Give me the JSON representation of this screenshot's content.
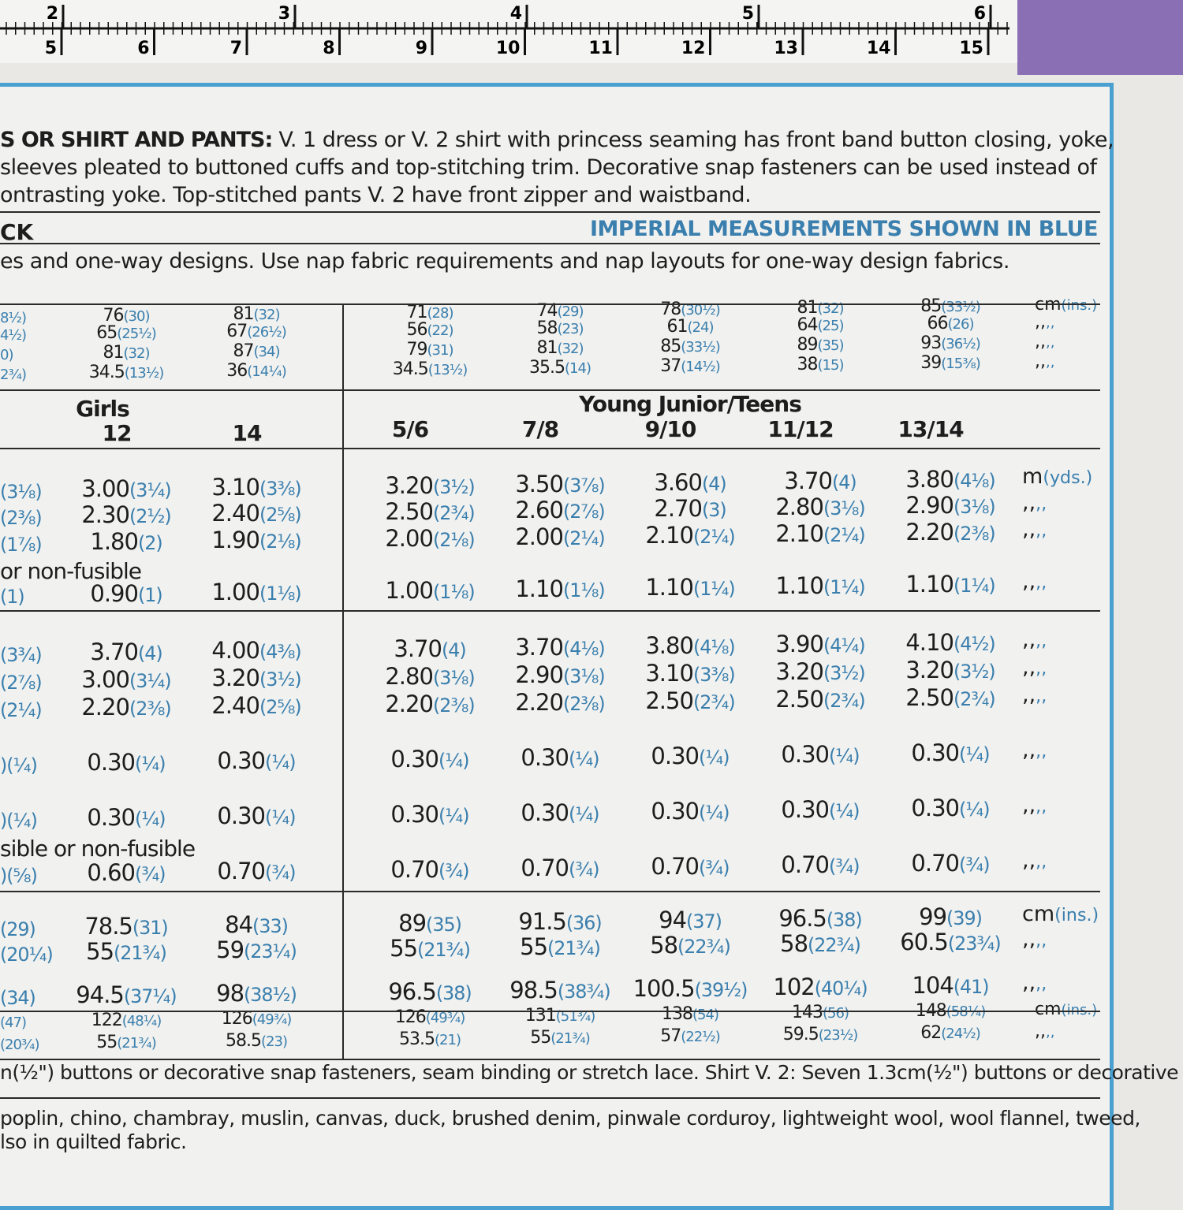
{
  "ruler": {
    "inches": [
      "2",
      "3",
      "4",
      "5",
      "6"
    ],
    "cm": [
      "5",
      "6",
      "7",
      "8",
      "9",
      "10",
      "11",
      "12",
      "13",
      "14",
      "15"
    ]
  },
  "description": {
    "heading": "S OR SHIRT AND PANTS:",
    "lines": [
      " V. 1 dress or V. 2 shirt with princess seaming has front band button closing, yoke,",
      "sleeves pleated to buttoned cuffs and top-stitching trim. Decorative snap fasteners can be used instead of",
      "ontrasting yoke. Top-stitched pants V. 2 have front zipper and waistband."
    ]
  },
  "section": {
    "label": "CK",
    "imperial_note": "IMPERIAL MEASUREMENTS SHOWN IN BLUE",
    "note": "es and one-way designs. Use nap fabric requirements and nap layouts for one-way design fabrics."
  },
  "sizes": {
    "girls": {
      "label": "Girls",
      "sizes": [
        "12",
        "14"
      ]
    },
    "young_junior_teens": {
      "label": "Young Junior/Teens",
      "sizes": [
        "5/6",
        "7/8",
        "9/10",
        "11/12",
        "13/14"
      ]
    }
  },
  "blocks": [
    {
      "rows": [
        [
          [
            "8½)"
          ],
          [
            "76",
            "(30)"
          ],
          [
            "81",
            "(32)"
          ],
          [
            "71",
            "(28)"
          ],
          [
            "74",
            "(29)"
          ],
          [
            "78",
            "(30½)"
          ],
          [
            "81",
            "(32)"
          ],
          [
            "85",
            "(33½)"
          ],
          [
            "cm",
            "(ins.)"
          ]
        ],
        [
          [
            "4½)"
          ],
          [
            "65",
            "(25½)"
          ],
          [
            "67",
            "(26½)"
          ],
          [
            "56",
            "(22)"
          ],
          [
            "58",
            "(23)"
          ],
          [
            "61",
            "(24)"
          ],
          [
            "64",
            "(25)"
          ],
          [
            "66",
            "(26)"
          ],
          [
            ",,",
            ",,"
          ]
        ],
        [
          [
            "0)"
          ],
          [
            "81",
            "(32)"
          ],
          [
            "87",
            "(34)"
          ],
          [
            "79",
            "(31)"
          ],
          [
            "81",
            "(32)"
          ],
          [
            "85",
            "(33½)"
          ],
          [
            "89",
            "(35)"
          ],
          [
            "93",
            "(36½)"
          ],
          [
            ",,",
            ",,"
          ]
        ],
        [
          [
            "2¾)"
          ],
          [
            "34.5",
            "(13½)"
          ],
          [
            "36",
            "(14¼)"
          ],
          [
            "34.5",
            "(13½)"
          ],
          [
            "35.5",
            "(14)"
          ],
          [
            "37",
            "(14½)"
          ],
          [
            "38",
            "(15)"
          ],
          [
            "39",
            "(15⅜)"
          ],
          [
            ",,",
            ",,"
          ]
        ]
      ]
    },
    {
      "rows": [
        [
          [
            "(3⅛)"
          ],
          [
            "3.00",
            "(3¼)"
          ],
          [
            "3.10",
            "(3⅜)"
          ],
          [
            "3.20",
            "(3½)"
          ],
          [
            "3.50",
            "(3⅞)"
          ],
          [
            "3.60",
            "(4)"
          ],
          [
            "3.70",
            "(4)"
          ],
          [
            "3.80",
            "(4⅛)"
          ],
          [
            "m",
            "(yds.)"
          ]
        ],
        [
          [
            "(2⅜)"
          ],
          [
            "2.30",
            "(2½)"
          ],
          [
            "2.40",
            "(2⅝)"
          ],
          [
            "2.50",
            "(2¾)"
          ],
          [
            "2.60",
            "(2⅞)"
          ],
          [
            "2.70",
            "(3)"
          ],
          [
            "2.80",
            "(3⅛)"
          ],
          [
            "2.90",
            "(3⅛)"
          ],
          [
            ",,",
            ",,"
          ]
        ],
        [
          [
            "(1⅞)"
          ],
          [
            "1.80",
            "(2)"
          ],
          [
            "1.90",
            "(2⅛)"
          ],
          [
            "2.00",
            "(2⅛)"
          ],
          [
            "2.00",
            "(2¼)"
          ],
          [
            "2.10",
            "(2¼)"
          ],
          [
            "2.10",
            "(2¼)"
          ],
          [
            "2.20",
            "(2⅜)"
          ],
          [
            ",,",
            ",,"
          ]
        ],
        [
          [
            "(1)"
          ],
          [
            "0.90",
            "(1)"
          ],
          [
            "1.00",
            "(1⅛)"
          ],
          [
            "1.00",
            "(1⅛)"
          ],
          [
            "1.10",
            "(1⅛)"
          ],
          [
            "1.10",
            "(1¼)"
          ],
          [
            "1.10",
            "(1¼)"
          ],
          [
            "1.10",
            "(1¼)"
          ],
          [
            ",,",
            ",,"
          ]
        ]
      ],
      "note": "or non-fusible"
    },
    {
      "rows": [
        [
          [
            "(3¾)"
          ],
          [
            "3.70",
            "(4)"
          ],
          [
            "4.00",
            "(4⅜)"
          ],
          [
            "3.70",
            "(4)"
          ],
          [
            "3.70",
            "(4⅛)"
          ],
          [
            "3.80",
            "(4⅛)"
          ],
          [
            "3.90",
            "(4¼)"
          ],
          [
            "4.10",
            "(4½)"
          ],
          [
            ",,",
            ",,"
          ]
        ],
        [
          [
            "(2⅞)"
          ],
          [
            "3.00",
            "(3¼)"
          ],
          [
            "3.20",
            "(3½)"
          ],
          [
            "2.80",
            "(3⅛)"
          ],
          [
            "2.90",
            "(3⅛)"
          ],
          [
            "3.10",
            "(3⅜)"
          ],
          [
            "3.20",
            "(3½)"
          ],
          [
            "3.20",
            "(3½)"
          ],
          [
            ",,",
            ",,"
          ]
        ],
        [
          [
            "(2¼)"
          ],
          [
            "2.20",
            "(2⅜)"
          ],
          [
            "2.40",
            "(2⅝)"
          ],
          [
            "2.20",
            "(2⅜)"
          ],
          [
            "2.20",
            "(2⅜)"
          ],
          [
            "2.50",
            "(2¾)"
          ],
          [
            "2.50",
            "(2¾)"
          ],
          [
            "2.50",
            "(2¾)"
          ],
          [
            ",,",
            ",,"
          ]
        ],
        [
          [
            ")(¼)"
          ],
          [
            "0.30",
            "(¼)"
          ],
          [
            "0.30",
            "(¼)"
          ],
          [
            "0.30",
            "(¼)"
          ],
          [
            "0.30",
            "(¼)"
          ],
          [
            "0.30",
            "(¼)"
          ],
          [
            "0.30",
            "(¼)"
          ],
          [
            "0.30",
            "(¼)"
          ],
          [
            ",,",
            ",,"
          ]
        ],
        [
          [
            ")(¼)"
          ],
          [
            "0.30",
            "(¼)"
          ],
          [
            "0.30",
            "(¼)"
          ],
          [
            "0.30",
            "(¼)"
          ],
          [
            "0.30",
            "(¼)"
          ],
          [
            "0.30",
            "(¼)"
          ],
          [
            "0.30",
            "(¼)"
          ],
          [
            "0.30",
            "(¼)"
          ],
          [
            ",,",
            ",,"
          ]
        ],
        [
          [
            ")(⅝)"
          ],
          [
            "0.60",
            "(¾)"
          ],
          [
            "0.70",
            "(¾)"
          ],
          [
            "0.70",
            "(¾)"
          ],
          [
            "0.70",
            "(¾)"
          ],
          [
            "0.70",
            "(¾)"
          ],
          [
            "0.70",
            "(¾)"
          ],
          [
            "0.70",
            "(¾)"
          ],
          [
            ",,",
            ",,"
          ]
        ]
      ],
      "note": "sible or non-fusible"
    },
    {
      "rows": [
        [
          [
            "(29)"
          ],
          [
            "78.5",
            "(31)"
          ],
          [
            "84",
            "(33)"
          ],
          [
            "89",
            "(35)"
          ],
          [
            "91.5",
            "(36)"
          ],
          [
            "94",
            "(37)"
          ],
          [
            "96.5",
            "(38)"
          ],
          [
            "99",
            "(39)"
          ],
          [
            "cm",
            "(ins.)"
          ]
        ],
        [
          [
            "(20¼)"
          ],
          [
            "55",
            "(21¾)"
          ],
          [
            "59",
            "(23¼)"
          ],
          [
            "55",
            "(21¾)"
          ],
          [
            "55",
            "(21¾)"
          ],
          [
            "58",
            "(22¾)"
          ],
          [
            "58",
            "(22¾)"
          ],
          [
            "60.5",
            "(23¾)"
          ],
          [
            ",,",
            ",,"
          ]
        ],
        [
          [
            "(34)"
          ],
          [
            "94.5",
            "(37¼)"
          ],
          [
            "98",
            "(38½)"
          ],
          [
            "96.5",
            "(38)"
          ],
          [
            "98.5",
            "(38¾)"
          ],
          [
            "100.5",
            "(39½)"
          ],
          [
            "102",
            "(40¼)"
          ],
          [
            "104",
            "(41)"
          ],
          [
            ",,",
            ",,"
          ]
        ]
      ]
    },
    {
      "rows": [
        [
          [
            "(47)"
          ],
          [
            "122",
            "(48¼)"
          ],
          [
            "126",
            "(49¾)"
          ],
          [
            "126",
            "(49¾)"
          ],
          [
            "131",
            "(51¾)"
          ],
          [
            "138",
            "(54)"
          ],
          [
            "143",
            "(56)"
          ],
          [
            "148",
            "(58¼)"
          ],
          [
            "cm",
            "(ins.)"
          ]
        ],
        [
          [
            "(20¾)"
          ],
          [
            "55",
            "(21¾)"
          ],
          [
            "58.5",
            "(23)"
          ],
          [
            "53.5",
            "(21)"
          ],
          [
            "55",
            "(21¾)"
          ],
          [
            "57",
            "(22½)"
          ],
          [
            "59.5",
            "(23½)"
          ],
          [
            "62",
            "(24½)"
          ],
          [
            ",,",
            ",,"
          ]
        ]
      ]
    }
  ],
  "notions": "n(½\") buttons or decorative snap fasteners, seam binding or stretch lace. Shirt V. 2: Seven 1.3cm(½\") buttons or decorative",
  "fabrics": [
    " poplin, chino, chambray, muslin, canvas, duck, brushed denim, pinwale corduroy, lightweight wool, wool flannel, tweed,",
    "lso in quilted fabric."
  ]
}
